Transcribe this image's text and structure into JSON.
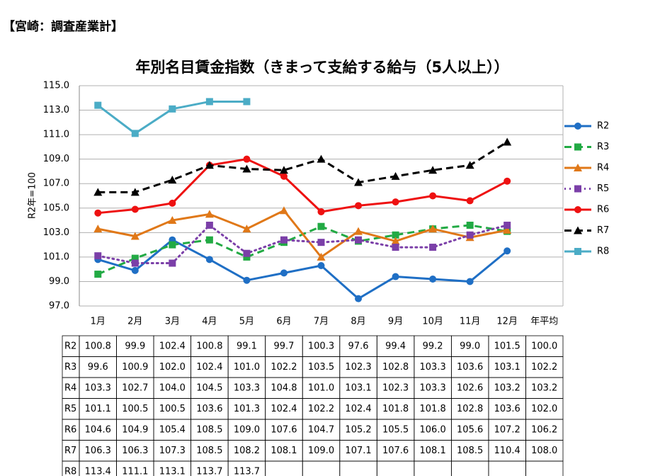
{
  "header": "【宮崎：調査産業計】",
  "chart_data": {
    "type": "line",
    "title": "年別名目賃金指数（きまって支給する給与（5人以上））",
    "y_label": "R2年=100",
    "categories": [
      "1月",
      "2月",
      "3月",
      "4月",
      "5月",
      "6月",
      "7月",
      "8月",
      "9月",
      "10月",
      "11月",
      "12月"
    ],
    "average_label": "年平均",
    "ylim": [
      97,
      115
    ],
    "yticks": [
      {
        "value": 97,
        "label": "97.0"
      },
      {
        "value": 99,
        "label": "99.0"
      },
      {
        "value": 101,
        "label": "101.0"
      },
      {
        "value": 103,
        "label": "103.0"
      },
      {
        "value": 105,
        "label": "105.0"
      },
      {
        "value": 107,
        "label": "107.0"
      },
      {
        "value": 109,
        "label": "109.0"
      },
      {
        "value": 111,
        "label": "111.0"
      },
      {
        "value": 113,
        "label": "113.0"
      },
      {
        "value": 115,
        "label": "115.0"
      }
    ],
    "grid": true,
    "legend": "right",
    "series": [
      {
        "name": "R2",
        "color": "#1f6fc5",
        "dash": "solid",
        "marker": "circle",
        "values": [
          100.8,
          99.9,
          102.4,
          100.8,
          99.1,
          99.7,
          100.3,
          97.6,
          99.4,
          99.2,
          99.0,
          101.5
        ],
        "value_labels": [
          "100.8",
          "99.9",
          "102.4",
          "100.8",
          "99.1",
          "99.7",
          "100.3",
          "97.6",
          "99.4",
          "99.2",
          "99.0",
          "101.5"
        ],
        "average": 100.0,
        "average_label": "100.0"
      },
      {
        "name": "R3",
        "color": "#22aa44",
        "dash": "dashed",
        "marker": "square",
        "values": [
          99.6,
          100.9,
          102.0,
          102.4,
          101.0,
          102.2,
          103.5,
          102.3,
          102.8,
          103.3,
          103.6,
          103.1
        ],
        "value_labels": [
          "99.6",
          "100.9",
          "102.0",
          "102.4",
          "101.0",
          "102.2",
          "103.5",
          "102.3",
          "102.8",
          "103.3",
          "103.6",
          "103.1"
        ],
        "average": 102.2,
        "average_label": "102.2"
      },
      {
        "name": "R4",
        "color": "#e07818",
        "dash": "solid",
        "marker": "triangle",
        "values": [
          103.3,
          102.7,
          104.0,
          104.5,
          103.3,
          104.8,
          101.0,
          103.1,
          102.3,
          103.3,
          102.6,
          103.2
        ],
        "value_labels": [
          "103.3",
          "102.7",
          "104.0",
          "104.5",
          "103.3",
          "104.8",
          "101.0",
          "103.1",
          "102.3",
          "103.3",
          "102.6",
          "103.2"
        ],
        "average": 103.2,
        "average_label": "103.2"
      },
      {
        "name": "R5",
        "color": "#7b3fa8",
        "dash": "dotted",
        "marker": "square",
        "values": [
          101.1,
          100.5,
          100.5,
          103.6,
          101.3,
          102.4,
          102.2,
          102.4,
          101.8,
          101.8,
          102.8,
          103.6
        ],
        "value_labels": [
          "101.1",
          "100.5",
          "100.5",
          "103.6",
          "101.3",
          "102.4",
          "102.2",
          "102.4",
          "101.8",
          "101.8",
          "102.8",
          "103.6"
        ],
        "average": 102.0,
        "average_label": "102.0"
      },
      {
        "name": "R6",
        "color": "#ee1111",
        "dash": "solid",
        "marker": "circle",
        "values": [
          104.6,
          104.9,
          105.4,
          108.5,
          109.0,
          107.6,
          104.7,
          105.2,
          105.5,
          106.0,
          105.6,
          107.2
        ],
        "value_labels": [
          "104.6",
          "104.9",
          "105.4",
          "108.5",
          "109.0",
          "107.6",
          "104.7",
          "105.2",
          "105.5",
          "106.0",
          "105.6",
          "107.2"
        ],
        "average": 106.2,
        "average_label": "106.2"
      },
      {
        "name": "R7",
        "color": "#000000",
        "dash": "dashed",
        "marker": "triangle",
        "values": [
          106.3,
          106.3,
          107.3,
          108.5,
          108.2,
          108.1,
          109.0,
          107.1,
          107.6,
          108.1,
          108.5,
          110.4
        ],
        "value_labels": [
          "106.3",
          "106.3",
          "107.3",
          "108.5",
          "108.2",
          "108.1",
          "109.0",
          "107.1",
          "107.6",
          "108.1",
          "108.5",
          "110.4"
        ],
        "average": 108.0,
        "average_label": "108.0"
      },
      {
        "name": "R8",
        "color": "#4bacc6",
        "dash": "solid",
        "marker": "square",
        "values": [
          113.4,
          111.1,
          113.1,
          113.7,
          113.7,
          null,
          null,
          null,
          null,
          null,
          null,
          null
        ],
        "value_labels": [
          "113.4",
          "111.1",
          "113.1",
          "113.7",
          "113.7",
          null,
          null,
          null,
          null,
          null,
          null,
          null
        ],
        "average": null,
        "average_label": null
      }
    ]
  }
}
